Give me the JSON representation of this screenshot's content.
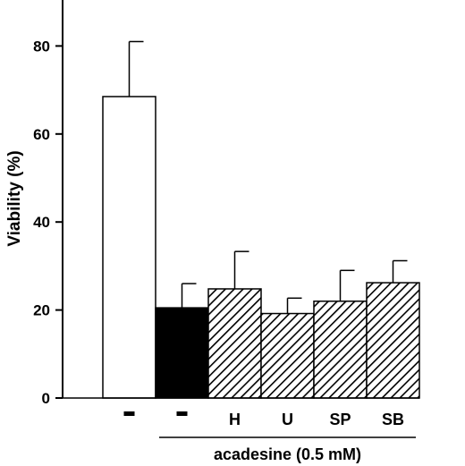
{
  "chart_data": {
    "type": "bar",
    "ylabel": "Viability (%)",
    "xlabel": "",
    "title": "",
    "ylim": [
      0,
      100
    ],
    "yticks": [
      0,
      20,
      40,
      60,
      80
    ],
    "categories": [
      "-",
      "-",
      "H",
      "U",
      "SP",
      "SB"
    ],
    "values": [
      68.5,
      20.5,
      24.8,
      19.2,
      22.0,
      26.2
    ],
    "errors": [
      12.5,
      5.5,
      8.5,
      3.5,
      7.0,
      5.0
    ],
    "fills": [
      "open",
      "solid",
      "hatched",
      "hatched",
      "hatched",
      "hatched"
    ],
    "grid": false,
    "group_annotation": {
      "label": "acadesine (0.5 mM)",
      "from_category": 1,
      "to_category": 5
    },
    "colors": {
      "bar_stroke": "#000000",
      "open_fill": "#ffffff",
      "solid_fill": "#000000",
      "hatch": "#000000"
    }
  }
}
